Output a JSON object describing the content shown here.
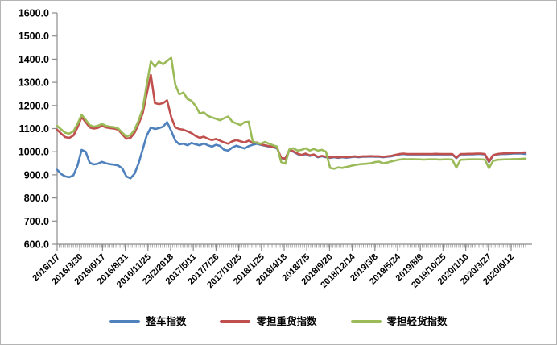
{
  "chart_data": {
    "type": "line",
    "title": "",
    "xlabel": "",
    "ylabel": "",
    "ylim": [
      600,
      1600
    ],
    "y_tick_step": 100,
    "grid": false,
    "legend_position": "bottom",
    "axis_color": "#8c8c8c",
    "minor_tick_color": "#a6a6a6",
    "y_tick_labels_top_down": [
      "1600.0",
      "1500.0",
      "1400.0",
      "1300.0",
      "1200.0",
      "1100.0",
      "1000.0",
      "900.0",
      "800.0",
      "700.0",
      "600.0"
    ],
    "x_tick_labels": [
      "2016/1/7",
      "2016/3/30",
      "2016/6/17",
      "2016/8/31",
      "2016/11/25",
      "23/2/2018",
      "2017/5/11",
      "2017/7/26",
      "2017/10/25",
      "2018/1/25",
      "2018/4/18",
      "2018/7/5",
      "2018/9/20",
      "2018/12/14",
      "2019/3/8",
      "2019/5/24",
      "2019/8/9",
      "2019/10/25",
      "2020/1/10",
      "2020/3/27",
      "2020/6/12"
    ],
    "x_sampling": "biweekly points from 2016/1/7 to 2020/6/12",
    "series": [
      {
        "name": "整车指数",
        "color": "#4F81BD",
        "values": [
          922,
          903,
          893,
          890,
          898,
          940,
          1008,
          1000,
          952,
          945,
          948,
          956,
          950,
          946,
          944,
          940,
          928,
          893,
          885,
          905,
          950,
          1010,
          1070,
          1105,
          1098,
          1102,
          1108,
          1128,
          1090,
          1048,
          1032,
          1035,
          1028,
          1038,
          1032,
          1028,
          1036,
          1028,
          1022,
          1030,
          1025,
          1008,
          1005,
          1018,
          1026,
          1020,
          1014,
          1024,
          1030,
          1034,
          1030,
          1026,
          1022,
          1020,
          1014,
          972,
          968,
          1006,
          1000,
          990,
          984,
          990,
          982,
          986,
          976,
          980,
          976,
          973,
          976,
          973,
          976,
          974,
          976,
          978,
          976,
          978,
          978,
          979,
          978,
          978,
          976,
          978,
          980,
          984,
          988,
          990,
          988,
          988,
          988,
          988,
          988,
          988,
          988,
          989,
          988,
          988,
          988,
          988,
          972,
          988,
          988,
          989,
          989,
          990,
          990,
          988,
          955,
          983,
          988,
          990,
          990,
          991,
          992,
          992,
          992,
          990
        ]
      },
      {
        "name": "零担重货指数",
        "color": "#C0504D",
        "values": [
          1095,
          1078,
          1063,
          1060,
          1070,
          1105,
          1150,
          1128,
          1105,
          1100,
          1103,
          1112,
          1105,
          1102,
          1100,
          1095,
          1075,
          1056,
          1060,
          1082,
          1120,
          1165,
          1250,
          1332,
          1210,
          1206,
          1210,
          1222,
          1150,
          1105,
          1098,
          1095,
          1088,
          1080,
          1068,
          1060,
          1065,
          1056,
          1050,
          1055,
          1048,
          1040,
          1035,
          1045,
          1050,
          1045,
          1040,
          1048,
          1038,
          1040,
          1032,
          1028,
          1024,
          1022,
          1016,
          974,
          970,
          1008,
          1002,
          992,
          986,
          992,
          984,
          988,
          978,
          982,
          978,
          975,
          978,
          975,
          978,
          976,
          978,
          980,
          978,
          980,
          980,
          981,
          980,
          980,
          978,
          980,
          982,
          986,
          990,
          992,
          990,
          990,
          990,
          990,
          990,
          990,
          990,
          991,
          990,
          990,
          990,
          990,
          974,
          990,
          990,
          991,
          991,
          992,
          992,
          990,
          957,
          985,
          990,
          992,
          993,
          994,
          995,
          996,
          996,
          997
        ]
      },
      {
        "name": "零担轻货指数",
        "color": "#9BBB59",
        "values": [
          1112,
          1096,
          1082,
          1078,
          1088,
          1120,
          1160,
          1138,
          1115,
          1108,
          1112,
          1120,
          1112,
          1108,
          1106,
          1100,
          1082,
          1066,
          1072,
          1095,
          1135,
          1185,
          1290,
          1390,
          1368,
          1390,
          1378,
          1392,
          1406,
          1290,
          1248,
          1256,
          1228,
          1220,
          1198,
          1165,
          1170,
          1155,
          1148,
          1142,
          1136,
          1145,
          1152,
          1130,
          1122,
          1115,
          1128,
          1130,
          1045,
          1038,
          1035,
          1042,
          1035,
          1028,
          1022,
          955,
          948,
          1010,
          1015,
          1005,
          1008,
          1015,
          1005,
          1012,
          1005,
          1008,
          1000,
          930,
          926,
          932,
          930,
          934,
          938,
          942,
          945,
          947,
          948,
          950,
          955,
          957,
          950,
          953,
          958,
          962,
          966,
          968,
          967,
          968,
          967,
          967,
          966,
          967,
          967,
          967,
          966,
          967,
          967,
          966,
          931,
          965,
          966,
          967,
          967,
          967,
          967,
          966,
          929,
          960,
          965,
          966,
          967,
          967,
          968,
          968,
          969,
          970
        ]
      }
    ]
  }
}
